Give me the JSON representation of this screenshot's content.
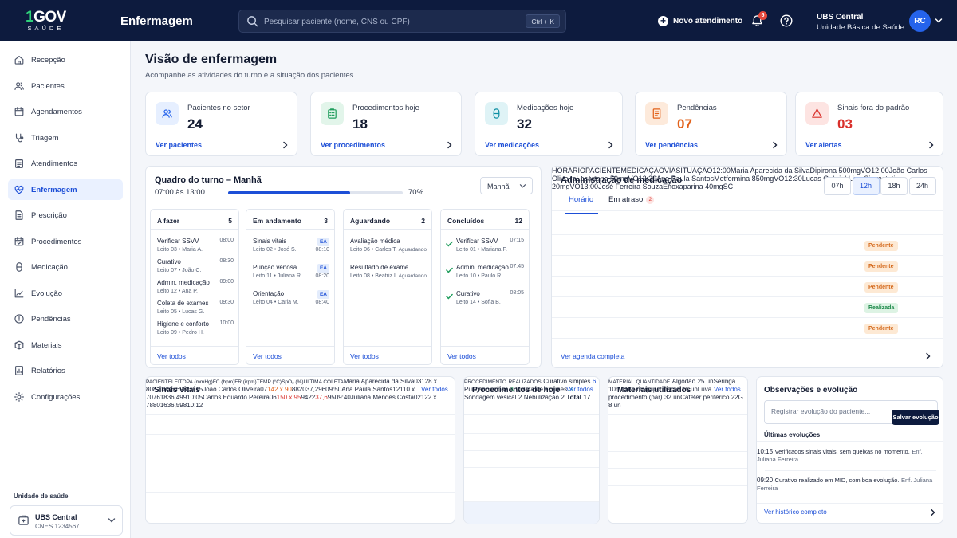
{
  "header": {
    "logo_main": "GOV",
    "logo_prefix": "1",
    "logo_sub": "SAÚDE",
    "app_title": "Enfermagem",
    "search_placeholder": "Pesquisar paciente (nome, CNS ou CPF)",
    "search_shortcut": "Ctrl + K",
    "new_button": "Novo atendimento",
    "notifications_count": "5",
    "unit_name": "UBS Central",
    "unit_type": "Unidade Básica de Saúde",
    "avatar_initials": "RC"
  },
  "sidebar": {
    "items": [
      {
        "label": "Recepção",
        "icon": "home-icon"
      },
      {
        "label": "Pacientes",
        "icon": "users-icon"
      },
      {
        "label": "Agendamentos",
        "icon": "calendar-icon"
      },
      {
        "label": "Triagem",
        "icon": "stethoscope-icon"
      },
      {
        "label": "Atendimentos",
        "icon": "clipboard-icon"
      },
      {
        "label": "Enfermagem",
        "icon": "heart-icon",
        "active": true
      },
      {
        "label": "Prescrição",
        "icon": "document-icon"
      },
      {
        "label": "Procedimentos",
        "icon": "calendar-check-icon"
      },
      {
        "label": "Medicação",
        "icon": "pill-icon"
      },
      {
        "label": "Evolução",
        "icon": "chart-line-icon"
      },
      {
        "label": "Pendências",
        "icon": "alert-circle-icon"
      },
      {
        "label": "Materiais",
        "icon": "box-icon"
      },
      {
        "label": "Relatórios",
        "icon": "report-icon"
      },
      {
        "label": "Configurações",
        "icon": "gear-icon"
      }
    ],
    "unit_label": "Unidade de saúde",
    "unit_name": "UBS Central",
    "unit_cnes": "CNES 1234567"
  },
  "page": {
    "title": "Visão de enfermagem",
    "subtitle": "Acompanhe as atividades do turno e a situação dos pacientes"
  },
  "kpis": [
    {
      "label": "Pacientes no setor",
      "value": "24",
      "link": "Ver pacientes",
      "icon": "users-icon",
      "color": "#2563eb",
      "bg": "#e6efff"
    },
    {
      "label": "Procedimentos hoje",
      "value": "18",
      "link": "Ver procedimentos",
      "icon": "clipboard-list-icon",
      "color": "#1f9d5c",
      "bg": "#e2f5ea"
    },
    {
      "label": "Medicações hoje",
      "value": "32",
      "link": "Ver medicações",
      "icon": "pill-icon",
      "color": "#0e8fa3",
      "bg": "#dff3f6"
    },
    {
      "label": "Pendências",
      "value": "07",
      "link": "Ver pendências",
      "icon": "document-alert-icon",
      "color": "#e2611a",
      "bg": "#fdeadb"
    },
    {
      "label": "Sinais fora do padrão",
      "value": "03",
      "link": "Ver alertas",
      "icon": "warning-icon",
      "color": "#d9302b",
      "bg": "#fde4e2"
    }
  ],
  "shift": {
    "title": "Quadro do turno – Manhã",
    "time": "07:00 às 13:00",
    "progress": 70,
    "progress_label": "70%",
    "select_value": "Manhã",
    "footer_link": "Ver todos",
    "columns": [
      {
        "title": "A fazer",
        "count": "5",
        "tasks": [
          {
            "name": "Verificar SSVV",
            "detail": "Leito 03 • Maria A.",
            "time": "08:00"
          },
          {
            "name": "Curativo",
            "detail": "Leito 07 • João C.",
            "time": "08:30"
          },
          {
            "name": "Admin. medicação",
            "detail": "Leito 12 • Ana P.",
            "time": "09:00"
          },
          {
            "name": "Coleta de exames",
            "detail": "Leito 05 • Lucas G.",
            "time": "09:30"
          },
          {
            "name": "Higiene e conforto",
            "detail": "Leito 09 • Pedro H.",
            "time": "10:00"
          }
        ]
      },
      {
        "title": "Em andamento",
        "count": "3",
        "tasks": [
          {
            "name": "Sinais vitais",
            "detail": "Leito 02 • José S.",
            "tag": "EA",
            "time": "08:10"
          },
          {
            "name": "Punção venosa",
            "detail": "Leito 11 • Juliana R.",
            "tag": "EA",
            "time": "08:20"
          },
          {
            "name": "Orientação",
            "detail": "Leito 04 • Carla M.",
            "tag": "EA",
            "time": "08:40"
          }
        ]
      },
      {
        "title": "Aguardando",
        "count": "2",
        "tasks": [
          {
            "name": "Avaliação médica",
            "detail": "Leito 06 • Carlos T.",
            "status": "Aguardando"
          },
          {
            "name": "Resultado de exame",
            "detail": "Leito 08 • Beatriz L.",
            "status": "Aguardando"
          }
        ]
      },
      {
        "title": "Concluídos",
        "count": "12",
        "tasks": [
          {
            "name": "Verificar SSVV",
            "detail": "Leito 01 • Mariana F.",
            "time": "07:15"
          },
          {
            "name": "Admin. medicação",
            "detail": "Leito 10 • Paulo R.",
            "time": "07:45"
          },
          {
            "name": "Curativo",
            "detail": "Leito 14 • Sofia B.",
            "time": "08:05"
          }
        ]
      }
    ]
  },
  "medication": {
    "title": "Administração de medicação",
    "tabs": [
      {
        "label": "Horário"
      },
      {
        "label": "Em atraso",
        "count": "2"
      }
    ],
    "hours": [
      "07h",
      "12h",
      "18h",
      "24h"
    ],
    "active_hour": "12h",
    "headers": [
      "HORÁRIO",
      "PACIENTE",
      "MEDICAÇÃO",
      "VIA",
      "SITUAÇÃO"
    ],
    "rows": [
      {
        "time": "12:00",
        "patient": "Maria Aparecida da Silva",
        "med": "Dipirona 500mg",
        "route": "VO",
        "status": "Pendente"
      },
      {
        "time": "12:00",
        "patient": "João Carlos Oliveira",
        "med": "Losartana 50mg",
        "route": "VO",
        "status": "Pendente"
      },
      {
        "time": "12:30",
        "patient": "Ana Paula Santos",
        "med": "Metformina 850mg",
        "route": "VO",
        "status": "Pendente"
      },
      {
        "time": "12:30",
        "patient": "Lucas Gabriel Lima",
        "med": "Sinvastatina 20mg",
        "route": "VO",
        "status": "Realizada"
      },
      {
        "time": "13:00",
        "patient": "José Ferreira Souza",
        "med": "Enoxaparina 40mg",
        "route": "SC",
        "status": "Pendente"
      }
    ],
    "footer_link": "Ver agenda completa"
  },
  "vitals": {
    "title": "Sinais vitais",
    "link": "Ver todos",
    "headers": [
      "PACIENTE",
      "LEITO",
      "PA (mmHg)",
      "FC (bpm)",
      "FR (irpm)",
      "TEMP (°C)",
      "SpO₂ (%)",
      "ÚLTIMA COLETA"
    ],
    "rows": [
      {
        "patient": "Maria Aparecida da Silva",
        "bed": "03",
        "pa": "128 x 80",
        "fc": "82",
        "fr": "18",
        "temp": "36,6",
        "spo2": "98",
        "last": "10:15"
      },
      {
        "patient": "João Carlos Oliveira",
        "bed": "07",
        "pa": "142 x 90",
        "pa_flag": "warn",
        "fc": "88",
        "fr": "20",
        "temp": "37,2",
        "spo2": "96",
        "last": "09:50"
      },
      {
        "patient": "Ana Paula Santos",
        "bed": "12",
        "pa": "110 x 70",
        "fc": "76",
        "fr": "18",
        "temp": "36,4",
        "spo2": "99",
        "last": "10:05"
      },
      {
        "patient": "Carlos Eduardo Pereira",
        "bed": "06",
        "pa": "150 x 95",
        "pa_flag": "alert",
        "fc": "94",
        "fr": "22",
        "temp": "37,6",
        "temp_flag": "alert",
        "spo2": "95",
        "last": "09:40"
      },
      {
        "patient": "Juliana Mendes Costa",
        "bed": "02",
        "pa": "122 x 78",
        "fc": "80",
        "fr": "16",
        "temp": "36,5",
        "spo2": "98",
        "last": "10:12"
      }
    ]
  },
  "procedures": {
    "title": "Procedimentos de hoje",
    "link": "Ver todos",
    "headers": [
      "PROCEDIMENTO",
      "REALIZADOS"
    ],
    "rows": [
      {
        "name": "Curativo simples",
        "count": "6",
        "color": "#1d4fd7"
      },
      {
        "name": "Punção venosa",
        "count": "4",
        "color": "#1f9d5c"
      },
      {
        "name": "Coleta de exames",
        "count": "3",
        "color": "#0e8fa3"
      },
      {
        "name": "Sondagem vesical",
        "count": "2",
        "color": "#1a2238"
      },
      {
        "name": "Nebulização",
        "count": "2",
        "color": "#1a2238"
      }
    ],
    "total_label": "Total",
    "total_value": "17"
  },
  "materials": {
    "title": "Materiais utilizados",
    "link": "Ver todos",
    "headers": [
      "MATERIAL",
      "QUANTIDADE"
    ],
    "rows": [
      {
        "name": "Algodão",
        "qty": "25 un"
      },
      {
        "name": "Seringa 10ml",
        "qty": "18 un"
      },
      {
        "name": "Equipo macro",
        "qty": "15 un"
      },
      {
        "name": "Luva procedimento (par)",
        "qty": "32 un"
      },
      {
        "name": "Cateter periférico 22G",
        "qty": "8 un"
      }
    ]
  },
  "notes": {
    "title": "Observações e evolução",
    "placeholder": "Registrar evolução do paciente...",
    "save_button": "Salvar evolução",
    "recent_title": "Últimas evoluções",
    "entries": [
      {
        "time": "10:15",
        "text": "Verificados sinais vitais, sem queixas no momento.",
        "author": "Enf. Juliana Ferreira"
      },
      {
        "time": "09:20",
        "text": "Curativo realizado em MID, com boa evolução.",
        "author": "Enf. Juliana Ferreira"
      }
    ],
    "footer_link": "Ver histórico completo"
  },
  "colors": {
    "primary": "#1d4fd7",
    "navy": "#0d1b3e",
    "warn": "#e2611a",
    "alert": "#d9302b",
    "success": "#1f9d5c"
  }
}
